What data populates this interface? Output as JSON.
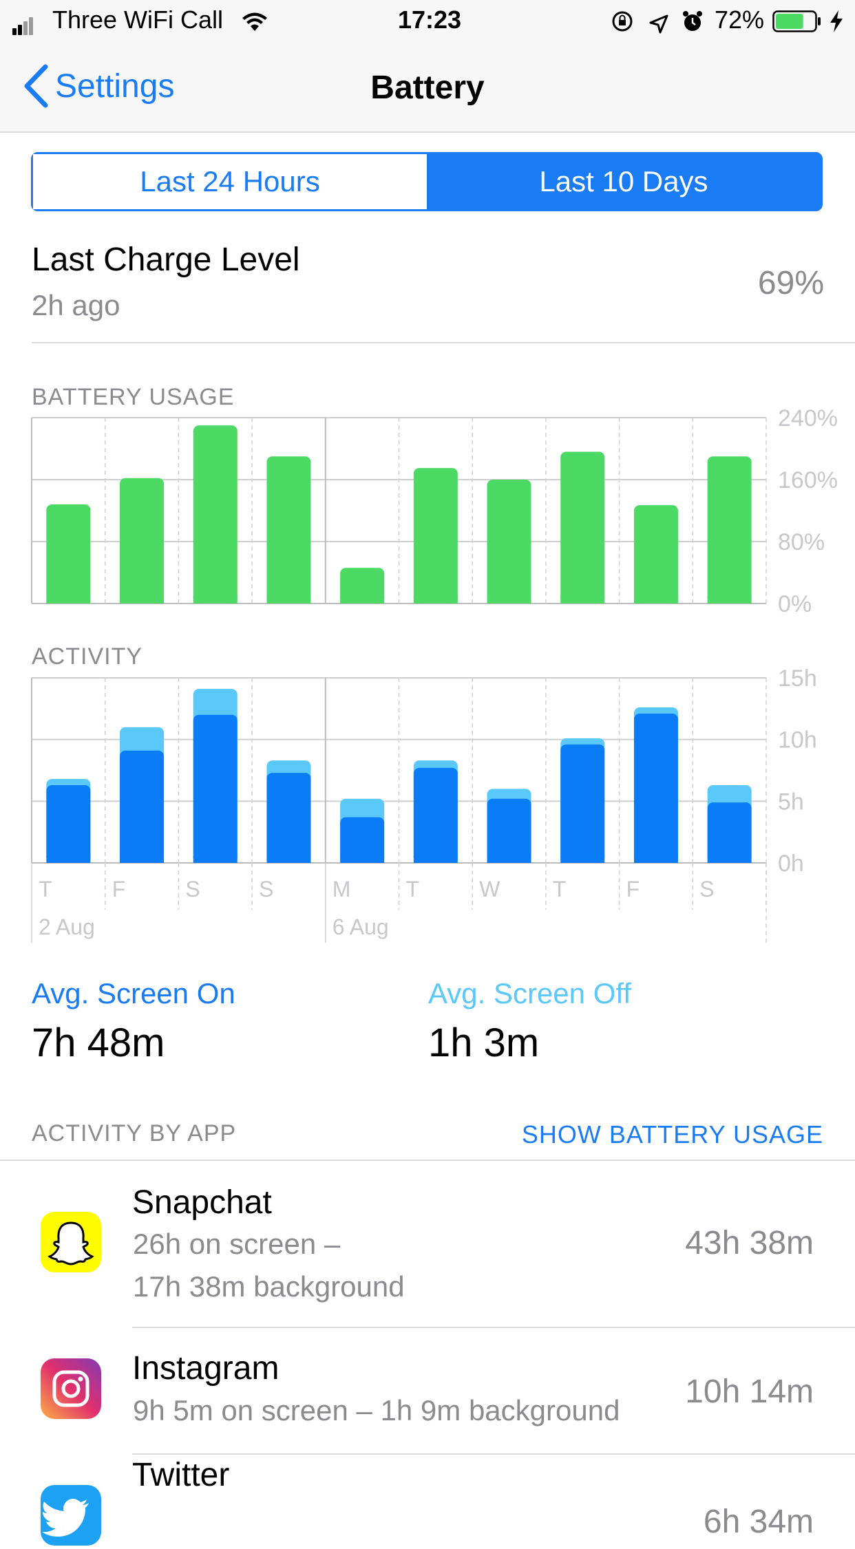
{
  "status_bar": {
    "carrier": "Three WiFi Call",
    "time": "17:23",
    "battery_percent": "72%",
    "battery_level": 0.72
  },
  "nav": {
    "back_label": "Settings",
    "title": "Battery"
  },
  "segments": {
    "left": "Last 24 Hours",
    "right": "Last 10 Days",
    "selected": "Last 10 Days"
  },
  "last_charge": {
    "title": "Last Charge Level",
    "subtitle": "2h ago",
    "value": "69%"
  },
  "colors": {
    "accent": "#1a7cf5",
    "usage_green": "#4cd964",
    "screen_on": "#0a7cf6",
    "screen_off": "#5ac8fa"
  },
  "chart_data": [
    {
      "type": "bar",
      "title": "BATTERY USAGE",
      "categories": [
        "T",
        "F",
        "S",
        "S",
        "M",
        "T",
        "W",
        "T",
        "F",
        "S"
      ],
      "values": [
        128,
        162,
        230,
        190,
        46,
        175,
        160,
        196,
        127,
        190
      ],
      "y_ticks": [
        "0%",
        "80%",
        "160%",
        "240%"
      ],
      "ylim": [
        0,
        240
      ],
      "grid": true
    },
    {
      "type": "bar",
      "stacked": true,
      "title": "ACTIVITY",
      "categories": [
        "T",
        "F",
        "S",
        "S",
        "M",
        "T",
        "W",
        "T",
        "F",
        "S"
      ],
      "date_labels": [
        "2 Aug",
        "6 Aug"
      ],
      "series": [
        {
          "values": [
            6.3,
            9.1,
            12.0,
            7.3,
            3.7,
            7.7,
            5.2,
            9.6,
            12.1,
            4.9
          ]
        },
        {
          "values": [
            0.5,
            1.9,
            2.1,
            1.0,
            1.5,
            0.6,
            0.8,
            0.5,
            0.5,
            1.4
          ]
        }
      ],
      "y_ticks": [
        "0h",
        "5h",
        "10h",
        "15h"
      ],
      "ylim": [
        0,
        15
      ],
      "grid": true
    }
  ],
  "averages": {
    "on_label": "Avg. Screen On",
    "on_value": "7h 48m",
    "off_label": "Avg. Screen Off",
    "off_value": "1h 3m"
  },
  "activity_header": {
    "label": "ACTIVITY BY APP",
    "action": "SHOW BATTERY USAGE"
  },
  "apps": [
    {
      "name": "Snapchat",
      "detail1": "26h on screen –",
      "detail2": "17h 38m background",
      "total": "43h 38m",
      "icon": "snapchat-icon"
    },
    {
      "name": "Instagram",
      "detail1": "9h 5m on screen – 1h 9m background",
      "total": "10h 14m",
      "icon": "instagram-icon"
    },
    {
      "name": "Twitter",
      "total": "6h 34m",
      "icon": "twitter-icon"
    }
  ]
}
